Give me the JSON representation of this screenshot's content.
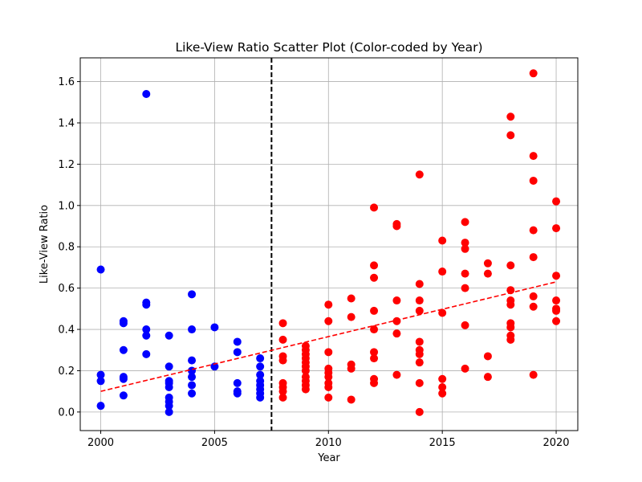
{
  "chart_data": {
    "type": "scatter",
    "title": "Like-View Ratio Scatter Plot (Color-coded by Year)",
    "xlabel": "Year",
    "ylabel": "Like-View Ratio",
    "xlim": [
      1999.1,
      2020.95
    ],
    "ylim": [
      -0.09,
      1.715
    ],
    "grid": true,
    "x_ticks": [
      2000,
      2005,
      2010,
      2015,
      2020
    ],
    "y_ticks": [
      0.0,
      0.2,
      0.4,
      0.6,
      0.8,
      1.0,
      1.2,
      1.4,
      1.6
    ],
    "y_tick_labels": [
      "0.0",
      "0.2",
      "0.4",
      "0.6",
      "0.8",
      "1.0",
      "1.2",
      "1.4",
      "1.6"
    ],
    "divider_x": 2007.5,
    "divider_color": "#000000",
    "trend_line": {
      "x": [
        2000,
        2020
      ],
      "y": [
        0.1,
        0.63
      ],
      "color": "#ff0000"
    },
    "series": [
      {
        "color": "#0000ff",
        "points": [
          [
            2000,
            0.69
          ],
          [
            2000,
            0.18
          ],
          [
            2000,
            0.15
          ],
          [
            2000,
            0.03
          ],
          [
            2001,
            0.44
          ],
          [
            2001,
            0.43
          ],
          [
            2001,
            0.3
          ],
          [
            2001,
            0.17
          ],
          [
            2001,
            0.16
          ],
          [
            2001,
            0.08
          ],
          [
            2002,
            1.54
          ],
          [
            2002,
            0.53
          ],
          [
            2002,
            0.52
          ],
          [
            2002,
            0.4
          ],
          [
            2002,
            0.37
          ],
          [
            2002,
            0.28
          ],
          [
            2003,
            0.37
          ],
          [
            2003,
            0.22
          ],
          [
            2003,
            0.15
          ],
          [
            2003,
            0.14
          ],
          [
            2003,
            0.12
          ],
          [
            2003,
            0.07
          ],
          [
            2003,
            0.05
          ],
          [
            2003,
            0.03
          ],
          [
            2003,
            0.0
          ],
          [
            2004,
            0.57
          ],
          [
            2004,
            0.4
          ],
          [
            2004,
            0.25
          ],
          [
            2004,
            0.2
          ],
          [
            2004,
            0.17
          ],
          [
            2004,
            0.13
          ],
          [
            2004,
            0.09
          ],
          [
            2005,
            0.41
          ],
          [
            2005,
            0.22
          ],
          [
            2006,
            0.34
          ],
          [
            2006,
            0.29
          ],
          [
            2006,
            0.14
          ],
          [
            2006,
            0.1
          ],
          [
            2006,
            0.09
          ],
          [
            2007,
            0.26
          ],
          [
            2007,
            0.22
          ],
          [
            2007,
            0.18
          ],
          [
            2007,
            0.15
          ],
          [
            2007,
            0.13
          ],
          [
            2007,
            0.11
          ],
          [
            2007,
            0.09
          ],
          [
            2007,
            0.07
          ]
        ]
      },
      {
        "color": "#ff0000",
        "points": [
          [
            2008,
            0.43
          ],
          [
            2008,
            0.35
          ],
          [
            2008,
            0.27
          ],
          [
            2008,
            0.25
          ],
          [
            2008,
            0.14
          ],
          [
            2008,
            0.12
          ],
          [
            2008,
            0.1
          ],
          [
            2008,
            0.07
          ],
          [
            2009,
            0.32
          ],
          [
            2009,
            0.3
          ],
          [
            2009,
            0.28
          ],
          [
            2009,
            0.26
          ],
          [
            2009,
            0.24
          ],
          [
            2009,
            0.22
          ],
          [
            2009,
            0.2
          ],
          [
            2009,
            0.17
          ],
          [
            2009,
            0.15
          ],
          [
            2009,
            0.13
          ],
          [
            2009,
            0.11
          ],
          [
            2010,
            0.52
          ],
          [
            2010,
            0.44
          ],
          [
            2010,
            0.29
          ],
          [
            2010,
            0.21
          ],
          [
            2010,
            0.19
          ],
          [
            2010,
            0.17
          ],
          [
            2010,
            0.14
          ],
          [
            2010,
            0.12
          ],
          [
            2010,
            0.07
          ],
          [
            2011,
            0.55
          ],
          [
            2011,
            0.46
          ],
          [
            2011,
            0.23
          ],
          [
            2011,
            0.21
          ],
          [
            2011,
            0.06
          ],
          [
            2012,
            0.99
          ],
          [
            2012,
            0.71
          ],
          [
            2012,
            0.65
          ],
          [
            2012,
            0.49
          ],
          [
            2012,
            0.4
          ],
          [
            2012,
            0.29
          ],
          [
            2012,
            0.26
          ],
          [
            2012,
            0.16
          ],
          [
            2012,
            0.14
          ],
          [
            2013,
            0.91
          ],
          [
            2013,
            0.9
          ],
          [
            2013,
            0.54
          ],
          [
            2013,
            0.44
          ],
          [
            2013,
            0.38
          ],
          [
            2013,
            0.18
          ],
          [
            2014,
            1.15
          ],
          [
            2014,
            0.62
          ],
          [
            2014,
            0.54
          ],
          [
            2014,
            0.49
          ],
          [
            2014,
            0.34
          ],
          [
            2014,
            0.3
          ],
          [
            2014,
            0.28
          ],
          [
            2014,
            0.24
          ],
          [
            2014,
            0.14
          ],
          [
            2014,
            0.0
          ],
          [
            2015,
            0.83
          ],
          [
            2015,
            0.68
          ],
          [
            2015,
            0.48
          ],
          [
            2015,
            0.16
          ],
          [
            2015,
            0.12
          ],
          [
            2015,
            0.09
          ],
          [
            2016,
            0.92
          ],
          [
            2016,
            0.82
          ],
          [
            2016,
            0.79
          ],
          [
            2016,
            0.67
          ],
          [
            2016,
            0.6
          ],
          [
            2016,
            0.42
          ],
          [
            2016,
            0.21
          ],
          [
            2017,
            0.72
          ],
          [
            2017,
            0.67
          ],
          [
            2017,
            0.27
          ],
          [
            2017,
            0.17
          ],
          [
            2018,
            1.43
          ],
          [
            2018,
            1.34
          ],
          [
            2018,
            0.71
          ],
          [
            2018,
            0.59
          ],
          [
            2018,
            0.54
          ],
          [
            2018,
            0.52
          ],
          [
            2018,
            0.43
          ],
          [
            2018,
            0.41
          ],
          [
            2018,
            0.37
          ],
          [
            2018,
            0.35
          ],
          [
            2019,
            1.64
          ],
          [
            2019,
            1.24
          ],
          [
            2019,
            1.12
          ],
          [
            2019,
            0.88
          ],
          [
            2019,
            0.75
          ],
          [
            2019,
            0.56
          ],
          [
            2019,
            0.51
          ],
          [
            2019,
            0.18
          ],
          [
            2020,
            1.02
          ],
          [
            2020,
            0.89
          ],
          [
            2020,
            0.66
          ],
          [
            2020,
            0.54
          ],
          [
            2020,
            0.5
          ],
          [
            2020,
            0.49
          ],
          [
            2020,
            0.44
          ]
        ]
      }
    ]
  }
}
